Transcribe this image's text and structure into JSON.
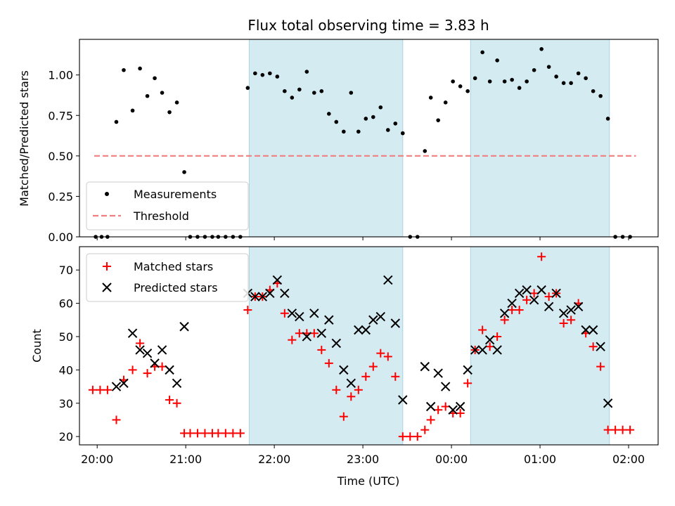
{
  "chart_data": [
    {
      "type": "scatter",
      "title": "Flux total observing time = 3.83 h",
      "xlabel": "",
      "ylabel": "Matched/Predicted stars",
      "ylim": [
        0,
        1.22
      ],
      "xlim": [
        "19:48",
        "02:20"
      ],
      "yticks": [
        "0.00",
        "0.25",
        "0.50",
        "0.75",
        "1.00"
      ],
      "legend_position": "lower-left",
      "shaded_intervals": [
        [
          "21:43",
          "23:27"
        ],
        [
          "00:13",
          "01:47"
        ]
      ],
      "series": [
        {
          "name": "Measurements",
          "color": "#000000",
          "marker": "dot",
          "x": [
            "19:59",
            "20:03",
            "20:07",
            "20:13",
            "20:18",
            "20:24",
            "20:29",
            "20:34",
            "20:39",
            "20:44",
            "20:49",
            "20:54",
            "20:59",
            "21:03",
            "21:08",
            "21:13",
            "21:18",
            "21:22",
            "21:27",
            "21:32",
            "21:37",
            "21:42",
            "21:47",
            "21:52",
            "21:57",
            "22:02",
            "22:07",
            "22:12",
            "22:17",
            "22:22",
            "22:27",
            "22:32",
            "22:37",
            "22:42",
            "22:47",
            "22:52",
            "22:57",
            "23:02",
            "23:07",
            "23:12",
            "23:17",
            "23:22",
            "23:27",
            "23:32",
            "23:37",
            "23:42",
            "23:46",
            "23:51",
            "23:56",
            "00:01",
            "00:06",
            "00:11",
            "00:16",
            "00:21",
            "00:26",
            "00:31",
            "00:36",
            "00:41",
            "00:46",
            "00:51",
            "00:56",
            "01:01",
            "01:06",
            "01:11",
            "01:16",
            "01:21",
            "01:26",
            "01:31",
            "01:36",
            "01:41",
            "01:46",
            "01:51",
            "01:56",
            "02:01"
          ],
          "y": [
            0,
            0,
            0,
            0.71,
            1.03,
            0.78,
            1.04,
            0.87,
            0.98,
            0.89,
            0.77,
            0.83,
            0.4,
            0,
            0,
            0,
            0,
            0,
            0,
            0,
            0,
            0.92,
            1.01,
            1.0,
            1.01,
            0.99,
            0.9,
            0.86,
            0.91,
            1.02,
            0.89,
            0.9,
            0.76,
            0.71,
            0.65,
            0.89,
            0.65,
            0.73,
            0.74,
            0.8,
            0.66,
            0.7,
            0.64,
            0,
            0,
            0.53,
            0.86,
            0.72,
            0.83,
            0.96,
            0.93,
            0.9,
            0.98,
            1.14,
            0.96,
            1.09,
            0.96,
            0.97,
            0.92,
            0.96,
            1.03,
            1.16,
            1.05,
            0.99,
            0.95,
            0.95,
            1.01,
            0.98,
            0.9,
            0.87,
            0.73,
            0,
            0,
            0
          ]
        },
        {
          "name": "Threshold",
          "color": "#f08080",
          "style": "dashed",
          "x": [
            "19:58",
            "02:05"
          ],
          "y": [
            0.5,
            0.5
          ]
        }
      ]
    },
    {
      "type": "scatter",
      "title": "",
      "xlabel": "Time (UTC)",
      "ylabel": "Count",
      "ylim": [
        17.5,
        77
      ],
      "xlim": [
        "19:48",
        "02:20"
      ],
      "yticks": [
        "20",
        "30",
        "40",
        "50",
        "60",
        "70"
      ],
      "xticks": [
        "20:00",
        "21:00",
        "22:00",
        "23:00",
        "00:00",
        "01:00",
        "02:00"
      ],
      "legend_position": "upper-left",
      "shaded_intervals": [
        [
          "21:43",
          "23:27"
        ],
        [
          "00:13",
          "01:47"
        ]
      ],
      "series": [
        {
          "name": "Matched stars",
          "color": "#ff0000",
          "marker": "plus",
          "x": [
            "19:57",
            "20:02",
            "20:07",
            "20:13",
            "20:18",
            "20:24",
            "20:29",
            "20:34",
            "20:39",
            "20:44",
            "20:49",
            "20:54",
            "20:59",
            "21:03",
            "21:08",
            "21:13",
            "21:18",
            "21:22",
            "21:27",
            "21:32",
            "21:37",
            "21:42",
            "21:47",
            "21:52",
            "21:57",
            "22:02",
            "22:07",
            "22:12",
            "22:17",
            "22:22",
            "22:27",
            "22:32",
            "22:37",
            "22:42",
            "22:47",
            "22:52",
            "22:57",
            "23:02",
            "23:07",
            "23:12",
            "23:17",
            "23:22",
            "23:27",
            "23:32",
            "23:37",
            "23:42",
            "23:46",
            "23:51",
            "23:56",
            "00:01",
            "00:06",
            "00:11",
            "00:16",
            "00:21",
            "00:26",
            "00:31",
            "00:36",
            "00:41",
            "00:46",
            "00:51",
            "00:56",
            "01:01",
            "01:06",
            "01:11",
            "01:16",
            "01:21",
            "01:26",
            "01:31",
            "01:36",
            "01:41",
            "01:46",
            "01:51",
            "01:56",
            "02:01"
          ],
          "y": [
            34,
            34,
            34,
            25,
            37,
            40,
            48,
            39,
            41,
            41,
            31,
            30,
            21,
            21,
            21,
            21,
            21,
            21,
            21,
            21,
            21,
            58,
            62,
            62,
            64,
            66,
            57,
            49,
            51,
            51,
            51,
            46,
            42,
            34,
            26,
            32,
            34,
            38,
            41,
            45,
            44,
            38,
            20,
            20,
            20,
            22,
            25,
            28,
            29,
            27,
            27,
            36,
            46,
            52,
            47,
            50,
            55,
            58,
            58,
            61,
            63,
            74,
            62,
            63,
            54,
            55,
            60,
            51,
            47,
            41,
            22,
            22,
            22,
            22
          ]
        },
        {
          "name": "Predicted stars",
          "color": "#000000",
          "marker": "x",
          "x": [
            "20:13",
            "20:18",
            "20:24",
            "20:29",
            "20:34",
            "20:39",
            "20:44",
            "20:49",
            "20:54",
            "20:59",
            "21:42",
            "21:47",
            "21:52",
            "21:57",
            "22:02",
            "22:07",
            "22:12",
            "22:17",
            "22:22",
            "22:27",
            "22:32",
            "22:37",
            "22:42",
            "22:47",
            "22:52",
            "22:57",
            "23:02",
            "23:07",
            "23:12",
            "23:17",
            "23:22",
            "23:27",
            "23:42",
            "23:46",
            "23:51",
            "23:56",
            "00:01",
            "00:06",
            "00:11",
            "00:16",
            "00:21",
            "00:26",
            "00:31",
            "00:36",
            "00:41",
            "00:46",
            "00:51",
            "00:56",
            "01:01",
            "01:06",
            "01:11",
            "01:16",
            "01:21",
            "01:26",
            "01:31",
            "01:36",
            "01:41",
            "01:46"
          ],
          "y": [
            35,
            36,
            51,
            46,
            45,
            42,
            46,
            40,
            36,
            53,
            63,
            62,
            62,
            63,
            67,
            63,
            57,
            56,
            50,
            57,
            51,
            55,
            48,
            40,
            36,
            52,
            52,
            55,
            56,
            67,
            54,
            31,
            41,
            29,
            39,
            35,
            28,
            29,
            40,
            46,
            46,
            49,
            46,
            57,
            60,
            63,
            64,
            61,
            64,
            59,
            63,
            57,
            58,
            59,
            52,
            52,
            47,
            30
          ]
        }
      ]
    }
  ]
}
